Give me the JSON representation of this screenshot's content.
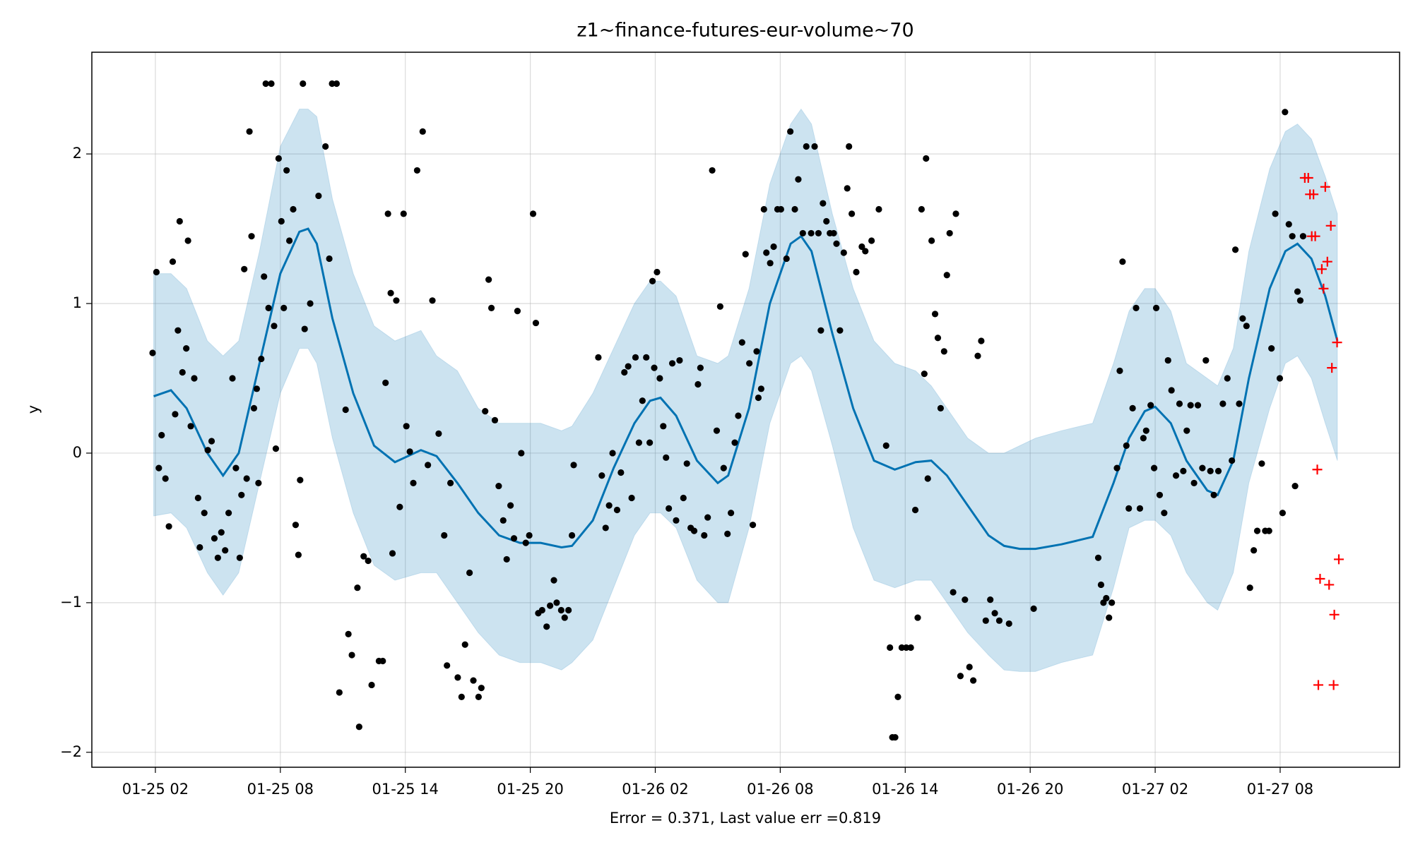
{
  "chart_data": {
    "type": "forecast",
    "title": "z1~finance-futures-eur-volume~70",
    "xlabel": "Error = 0.371, Last value err =0.819",
    "ylabel": "y",
    "grid": true,
    "xlim": [
      "01-24 22:57",
      "01-27 13:44"
    ],
    "xticks": [
      "01-25 02",
      "01-25 08",
      "01-25 14",
      "01-25 20",
      "01-26 02",
      "01-26 08",
      "01-26 14",
      "01-26 20",
      "01-27 02",
      "01-27 08"
    ],
    "ylim": [
      -2.1,
      2.68
    ],
    "yticks": [
      {
        "value": -2,
        "label": "−2"
      },
      {
        "value": -1,
        "label": "−1"
      },
      0,
      1,
      2
    ],
    "observed": {
      "color": "#000000",
      "x": [
        "01-25 01:52",
        "01-25 02:03",
        "01-25 02:10",
        "01-25 02:18",
        "01-25 02:29",
        "01-25 02:39",
        "01-25 02:50",
        "01-25 02:57",
        "01-25 03:05",
        "01-25 03:10",
        "01-25 03:18",
        "01-25 03:29",
        "01-25 03:34",
        "01-25 03:42",
        "01-25 03:52",
        "01-25 04:03",
        "01-25 04:08",
        "01-25 04:21",
        "01-25 04:31",
        "01-25 04:42",
        "01-25 04:50",
        "01-25 05:00",
        "01-25 05:10",
        "01-25 05:21",
        "01-25 05:31",
        "01-25 05:42",
        "01-25 05:52",
        "01-25 06:03",
        "01-25 06:08",
        "01-25 06:16",
        "01-25 06:23",
        "01-25 06:31",
        "01-25 06:37",
        "01-25 06:44",
        "01-25 06:52",
        "01-25 06:57",
        "01-25 07:05",
        "01-25 07:13",
        "01-25 07:18",
        "01-25 07:26",
        "01-25 07:34",
        "01-25 07:42",
        "01-25 07:47",
        "01-25 07:55",
        "01-25 08:03",
        "01-25 08:10",
        "01-25 08:18",
        "01-25 08:26",
        "01-25 08:37",
        "01-25 08:44",
        "01-25 08:52",
        "01-25 08:57",
        "01-25 09:05",
        "01-25 09:10",
        "01-25 09:26",
        "01-25 09:50",
        "01-25 10:10",
        "01-25 10:21",
        "01-25 10:29",
        "01-25 10:42",
        "01-25 10:50",
        "01-25 11:08",
        "01-25 11:16",
        "01-25 11:26",
        "01-25 11:42",
        "01-25 11:47",
        "01-25 12:00",
        "01-25 12:13",
        "01-25 12:23",
        "01-25 12:44",
        "01-25 12:55",
        "01-25 13:03",
        "01-25 13:10",
        "01-25 13:18",
        "01-25 13:23",
        "01-25 13:34",
        "01-25 13:44",
        "01-25 13:55",
        "01-25 14:03",
        "01-25 14:13",
        "01-25 14:23",
        "01-25 14:34",
        "01-25 14:50",
        "01-25 15:05",
        "01-25 15:18",
        "01-25 15:36",
        "01-25 15:52",
        "01-25 16:00",
        "01-25 16:10",
        "01-25 16:31",
        "01-25 16:42",
        "01-25 16:52",
        "01-25 17:05",
        "01-25 17:16",
        "01-25 17:31",
        "01-25 17:39",
        "01-25 17:50",
        "01-25 18:00",
        "01-25 18:08",
        "01-25 18:18",
        "01-25 18:29",
        "01-25 18:42",
        "01-25 18:52",
        "01-25 19:03",
        "01-25 19:13",
        "01-25 19:23",
        "01-25 19:34",
        "01-25 19:47",
        "01-25 19:57",
        "01-25 20:08",
        "01-25 20:16",
        "01-25 20:23",
        "01-25 20:34",
        "01-25 20:47",
        "01-25 20:57",
        "01-25 21:08",
        "01-25 21:16",
        "01-25 21:29",
        "01-25 21:39",
        "01-25 21:50",
        "01-25 22:00",
        "01-25 22:05",
        "01-25 23:16",
        "01-25 23:26",
        "01-25 23:37",
        "01-25 23:47",
        "01-25 23:57",
        "01-26 00:10",
        "01-26 00:21",
        "01-26 00:31",
        "01-26 00:42",
        "01-26 00:52",
        "01-26 01:03",
        "01-26 01:13",
        "01-26 01:23",
        "01-26 01:34",
        "01-26 01:44",
        "01-26 01:52",
        "01-26 01:57",
        "01-26 02:05",
        "01-26 02:13",
        "01-26 02:23",
        "01-26 02:31",
        "01-26 02:39",
        "01-26 02:49",
        "01-26 03:00",
        "01-26 03:10",
        "01-26 03:21",
        "01-26 03:31",
        "01-26 03:42",
        "01-26 03:52",
        "01-26 04:03",
        "01-26 04:10",
        "01-26 04:21",
        "01-26 04:31",
        "01-26 04:44",
        "01-26 04:57",
        "01-26 05:07",
        "01-26 05:17",
        "01-26 05:28",
        "01-26 05:38",
        "01-26 05:49",
        "01-26 05:59",
        "01-26 06:10",
        "01-26 06:20",
        "01-26 06:31",
        "01-26 06:41",
        "01-26 06:52",
        "01-26 06:57",
        "01-26 07:05",
        "01-26 07:13",
        "01-26 07:20",
        "01-26 07:31",
        "01-26 07:41",
        "01-26 07:52",
        "01-26 08:02",
        "01-26 08:18",
        "01-26 08:29",
        "01-26 08:42",
        "01-26 08:52",
        "01-26 09:05",
        "01-26 09:15",
        "01-26 09:29",
        "01-26 09:39",
        "01-26 09:50",
        "01-26 09:57",
        "01-26 10:03",
        "01-26 10:13",
        "01-26 10:23",
        "01-26 10:34",
        "01-26 10:42",
        "01-26 10:52",
        "01-26 11:03",
        "01-26 11:13",
        "01-26 11:18",
        "01-26 11:26",
        "01-26 11:39",
        "01-26 11:55",
        "01-26 12:05",
        "01-26 12:23",
        "01-26 12:44",
        "01-26 13:05",
        "01-26 13:16",
        "01-26 13:23",
        "01-26 13:31",
        "01-26 13:39",
        "01-26 13:50",
        "01-26 14:03",
        "01-26 14:16",
        "01-26 14:29",
        "01-26 14:36",
        "01-26 14:47",
        "01-26 14:55",
        "01-26 15:00",
        "01-26 15:05",
        "01-26 15:16",
        "01-26 15:26",
        "01-26 15:34",
        "01-26 15:42",
        "01-26 15:52",
        "01-26 16:00",
        "01-26 16:08",
        "01-26 16:18",
        "01-26 16:26",
        "01-26 16:39",
        "01-26 16:52",
        "01-26 17:05",
        "01-26 17:16",
        "01-26 17:29",
        "01-26 17:39",
        "01-26 17:52",
        "01-26 18:05",
        "01-26 18:18",
        "01-26 18:31",
        "01-26 18:59",
        "01-26 20:10",
        "01-26 23:16",
        "01-26 23:24",
        "01-26 23:31",
        "01-26 23:39",
        "01-26 23:47",
        "01-26 23:55",
        "01-27 00:10",
        "01-27 00:18",
        "01-27 00:26",
        "01-27 00:37",
        "01-27 00:44",
        "01-27 00:55",
        "01-27 01:05",
        "01-27 01:16",
        "01-27 01:26",
        "01-27 01:34",
        "01-27 01:47",
        "01-27 01:57",
        "01-27 02:03",
        "01-27 02:13",
        "01-27 02:26",
        "01-27 02:37",
        "01-27 02:47",
        "01-27 03:00",
        "01-27 03:10",
        "01-27 03:21",
        "01-27 03:31",
        "01-27 03:42",
        "01-27 03:52",
        "01-27 04:03",
        "01-27 04:16",
        "01-27 04:26",
        "01-27 04:39",
        "01-27 04:49",
        "01-27 05:02",
        "01-27 05:15",
        "01-27 05:28",
        "01-27 05:41",
        "01-27 05:51",
        "01-27 06:02",
        "01-27 06:12",
        "01-27 06:23",
        "01-27 06:33",
        "01-27 06:44",
        "01-27 06:54",
        "01-27 07:07",
        "01-27 07:17",
        "01-27 07:28",
        "01-27 07:35",
        "01-27 07:46",
        "01-27 07:59",
        "01-27 08:07",
        "01-27 08:14",
        "01-27 08:25",
        "01-27 08:35",
        "01-27 08:43",
        "01-27 08:50",
        "01-27 08:58",
        "01-27 09:06"
      ],
      "y": [
        0.67,
        1.21,
        -0.1,
        0.12,
        -0.17,
        -0.49,
        1.28,
        0.26,
        0.82,
        1.55,
        0.54,
        0.7,
        1.42,
        0.18,
        0.5,
        -0.3,
        -0.63,
        -0.4,
        0.02,
        0.08,
        -0.57,
        -0.7,
        -0.53,
        -0.65,
        -0.4,
        0.5,
        -0.1,
        -0.7,
        -0.28,
        1.23,
        -0.17,
        2.15,
        1.45,
        0.3,
        0.43,
        -0.2,
        0.63,
        1.18,
        2.47,
        0.97,
        2.47,
        0.85,
        0.03,
        1.97,
        1.55,
        0.97,
        1.89,
        1.42,
        1.63,
        -0.48,
        -0.68,
        -0.18,
        2.47,
        0.83,
        1.0,
        1.72,
        2.05,
        1.3,
        2.47,
        2.47,
        -1.6,
        0.29,
        -1.21,
        -1.35,
        -0.9,
        -1.83,
        -0.69,
        -0.72,
        -1.55,
        -1.39,
        -1.39,
        0.47,
        1.6,
        1.07,
        -0.67,
        1.02,
        -0.36,
        1.6,
        0.18,
        0.01,
        -0.2,
        1.89,
        2.15,
        -0.08,
        1.02,
        0.13,
        -0.55,
        -1.42,
        -0.2,
        -1.5,
        -1.63,
        -1.28,
        -0.8,
        -1.52,
        -1.63,
        -1.57,
        0.28,
        1.16,
        0.97,
        0.22,
        -0.22,
        -0.45,
        -0.71,
        -0.35,
        -0.57,
        0.95,
        0.0,
        -0.6,
        -0.55,
        1.6,
        0.87,
        -1.07,
        -1.05,
        -1.16,
        -1.02,
        -0.85,
        -1.0,
        -1.05,
        -1.1,
        -1.05,
        -0.55,
        -0.08,
        0.64,
        -0.15,
        -0.5,
        -0.35,
        0.0,
        -0.38,
        -0.13,
        0.54,
        0.58,
        -0.3,
        0.64,
        0.07,
        0.35,
        0.64,
        0.07,
        1.15,
        0.57,
        1.21,
        0.5,
        0.18,
        -0.03,
        -0.37,
        0.6,
        -0.45,
        0.62,
        -0.3,
        -0.07,
        -0.5,
        -0.52,
        0.46,
        0.57,
        -0.55,
        -0.43,
        1.89,
        0.15,
        0.98,
        -0.1,
        -0.54,
        -0.4,
        0.07,
        0.25,
        0.74,
        1.33,
        0.6,
        -0.48,
        0.68,
        0.37,
        0.43,
        1.63,
        1.34,
        1.27,
        1.38,
        1.63,
        1.63,
        1.3,
        2.15,
        1.63,
        1.83,
        1.47,
        2.05,
        1.47,
        2.05,
        1.47,
        0.82,
        1.67,
        1.55,
        1.47,
        1.47,
        1.4,
        0.82,
        1.34,
        1.77,
        2.05,
        1.6,
        1.21,
        1.38,
        1.35,
        1.42,
        1.63,
        0.05,
        -1.3,
        -1.9,
        -1.9,
        -1.63,
        -1.3,
        -1.3,
        -1.3,
        -0.38,
        -1.1,
        1.63,
        0.53,
        1.97,
        -0.17,
        1.42,
        0.93,
        0.77,
        0.3,
        0.68,
        1.19,
        1.47,
        -0.93,
        1.6,
        -1.49,
        -0.98,
        -1.43,
        -1.52,
        0.65,
        0.75,
        -1.12,
        -0.98,
        -1.07,
        -1.12,
        -1.14,
        -1.04,
        -0.7,
        -0.88,
        -1.0,
        -0.97,
        -1.1,
        -1.0,
        -0.1,
        0.55,
        1.28,
        0.05,
        -0.37,
        0.3,
        0.97,
        -0.37,
        0.1,
        0.15,
        0.32,
        -0.1,
        0.97,
        -0.28,
        -0.4,
        0.62,
        0.42,
        -0.15,
        0.33,
        -0.12,
        0.15,
        0.32,
        -0.2,
        0.32,
        -0.1,
        0.62,
        -0.12,
        -0.28,
        -0.12,
        0.33,
        0.5,
        -0.05,
        1.36,
        0.33,
        0.9,
        0.85,
        -0.9,
        -0.65,
        -0.52,
        -0.07,
        -0.52,
        -0.52,
        0.7,
        1.6,
        0.5,
        -0.4,
        2.28,
        1.53,
        1.45,
        -0.22,
        1.08,
        1.02,
        1.45
      ]
    },
    "test": {
      "color": "#ff0000",
      "x": [
        "01-27 09:11",
        "01-27 09:21",
        "01-27 09:26",
        "01-27 09:31",
        "01-27 09:36",
        "01-27 09:41",
        "01-27 09:47",
        "01-27 09:50",
        "01-27 09:55",
        "01-27 10:00",
        "01-27 10:05",
        "01-27 10:10",
        "01-27 10:16",
        "01-27 10:21",
        "01-27 10:26",
        "01-27 10:29",
        "01-27 10:34",
        "01-27 10:36",
        "01-27 10:44",
        "01-27 10:49"
      ],
      "y": [
        1.84,
        1.84,
        1.73,
        1.45,
        1.73,
        1.45,
        -0.11,
        -1.55,
        -0.84,
        1.23,
        1.1,
        1.78,
        1.28,
        -0.88,
        1.52,
        0.57,
        -1.55,
        -1.08,
        0.74,
        -0.71
      ]
    },
    "forecast": {
      "color": "#0072b2",
      "x": [
        "01-25 01:55",
        "01-25 02:45",
        "01-25 03:30",
        "01-25 04:30",
        "01-25 05:15",
        "01-25 06:00",
        "01-25 07:00",
        "01-25 08:00",
        "01-25 08:55",
        "01-25 09:20",
        "01-25 09:45",
        "01-25 10:30",
        "01-25 11:30",
        "01-25 12:30",
        "01-25 13:30",
        "01-25 14:45",
        "01-25 15:30",
        "01-25 16:30",
        "01-25 17:30",
        "01-25 18:30",
        "01-25 19:30",
        "01-25 20:30",
        "01-25 21:30",
        "01-25 22:00",
        "01-25 23:00",
        "01-26 00:00",
        "01-26 01:00",
        "01-26 01:45",
        "01-26 02:15",
        "01-26 03:00",
        "01-26 04:00",
        "01-26 05:00",
        "01-26 05:30",
        "01-26 06:30",
        "01-26 07:30",
        "01-26 08:30",
        "01-26 09:00",
        "01-26 09:30",
        "01-26 10:30",
        "01-26 11:30",
        "01-26 12:30",
        "01-26 13:30",
        "01-26 14:30",
        "01-26 15:15",
        "01-26 16:00",
        "01-26 17:00",
        "01-26 18:00",
        "01-26 18:45",
        "01-26 19:30",
        "01-26 20:15",
        "01-26 21:30",
        "01-26 23:00",
        "01-27 00:00",
        "01-27 00:45",
        "01-27 01:30",
        "01-27 02:00",
        "01-27 02:45",
        "01-27 03:30",
        "01-27 04:30",
        "01-27 05:00",
        "01-27 05:45",
        "01-27 06:30",
        "01-27 07:30",
        "01-27 08:15",
        "01-27 08:50",
        "01-27 09:30",
        "01-27 10:10",
        "01-27 10:45"
      ],
      "y": [
        0.38,
        0.42,
        0.3,
        0.0,
        -0.15,
        0.0,
        0.6,
        1.2,
        1.48,
        1.5,
        1.4,
        0.9,
        0.4,
        0.05,
        -0.06,
        0.02,
        -0.02,
        -0.2,
        -0.4,
        -0.55,
        -0.6,
        -0.6,
        -0.63,
        -0.62,
        -0.45,
        -0.1,
        0.2,
        0.35,
        0.37,
        0.25,
        -0.05,
        -0.2,
        -0.15,
        0.3,
        1.0,
        1.4,
        1.45,
        1.35,
        0.8,
        0.3,
        -0.05,
        -0.11,
        -0.06,
        -0.05,
        -0.15,
        -0.35,
        -0.55,
        -0.62,
        -0.64,
        -0.64,
        -0.61,
        -0.56,
        -0.2,
        0.1,
        0.28,
        0.31,
        0.2,
        -0.05,
        -0.25,
        -0.28,
        -0.05,
        0.5,
        1.1,
        1.35,
        1.4,
        1.3,
        1.05,
        0.75
      ],
      "lower": [
        -0.42,
        -0.4,
        -0.5,
        -0.8,
        -0.95,
        -0.8,
        -0.2,
        0.4,
        0.7,
        0.7,
        0.6,
        0.1,
        -0.4,
        -0.75,
        -0.85,
        -0.8,
        -0.8,
        -1.0,
        -1.2,
        -1.35,
        -1.4,
        -1.4,
        -1.45,
        -1.4,
        -1.25,
        -0.9,
        -0.55,
        -0.4,
        -0.4,
        -0.5,
        -0.85,
        -1.0,
        -1.0,
        -0.5,
        0.2,
        0.6,
        0.65,
        0.55,
        0.05,
        -0.5,
        -0.85,
        -0.9,
        -0.85,
        -0.85,
        -1.0,
        -1.2,
        -1.35,
        -1.45,
        -1.46,
        -1.46,
        -1.4,
        -1.35,
        -0.9,
        -0.5,
        -0.45,
        -0.45,
        -0.55,
        -0.8,
        -1.0,
        -1.05,
        -0.8,
        -0.2,
        0.3,
        0.6,
        0.65,
        0.5,
        0.2,
        -0.05
      ],
      "upper": [
        1.2,
        1.2,
        1.1,
        0.75,
        0.65,
        0.75,
        1.35,
        2.05,
        2.3,
        2.3,
        2.25,
        1.7,
        1.2,
        0.85,
        0.75,
        0.82,
        0.65,
        0.55,
        0.3,
        0.2,
        0.2,
        0.2,
        0.15,
        0.18,
        0.4,
        0.7,
        1.0,
        1.15,
        1.15,
        1.05,
        0.65,
        0.6,
        0.65,
        1.1,
        1.8,
        2.2,
        2.3,
        2.2,
        1.6,
        1.1,
        0.75,
        0.6,
        0.55,
        0.45,
        0.3,
        0.1,
        0.0,
        0.0,
        0.05,
        0.1,
        0.15,
        0.2,
        0.6,
        0.95,
        1.1,
        1.1,
        0.95,
        0.6,
        0.5,
        0.45,
        0.7,
        1.35,
        1.9,
        2.15,
        2.2,
        2.1,
        1.85,
        1.6
      ]
    }
  }
}
